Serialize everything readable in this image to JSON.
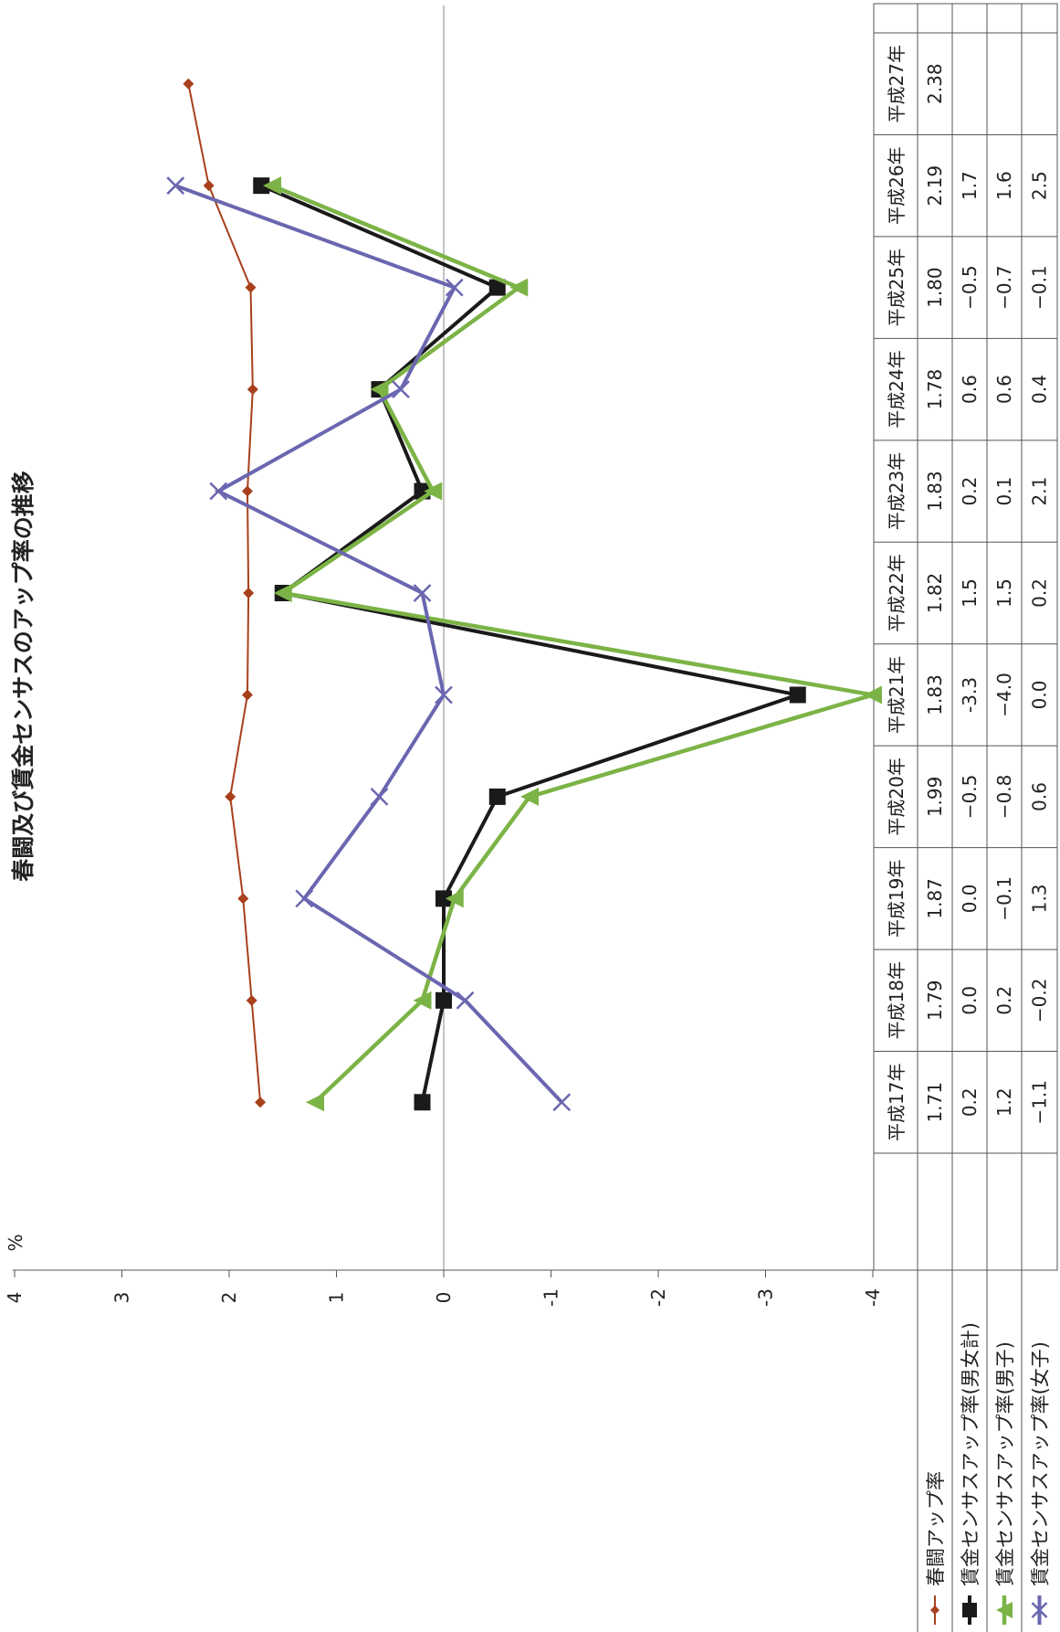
{
  "chart_data": {
    "type": "line",
    "title": "春闘及び賃金センサスのアップ率の推移",
    "ylabel": "%",
    "ylim": [
      -4,
      4
    ],
    "yticks": [
      "4",
      "3",
      "2",
      "1",
      "0",
      "-1",
      "-2",
      "-3",
      "-4"
    ],
    "categories": [
      "平成17年",
      "平成18年",
      "平成19年",
      "平成20年",
      "平成21年",
      "平成22年",
      "平成23年",
      "平成24年",
      "平成25年",
      "平成26年",
      "平成27年"
    ],
    "series": [
      {
        "name": "春闘アップ率",
        "color": "#a8401c",
        "marker": "diamond",
        "values": [
          1.71,
          1.79,
          1.87,
          1.99,
          1.83,
          1.82,
          1.83,
          1.78,
          1.8,
          2.19,
          2.38
        ],
        "labels": [
          "1.71",
          "1.79",
          "1.87",
          "1.99",
          "1.83",
          "1.82",
          "1.83",
          "1.78",
          "1.80",
          "2.19",
          "2.38"
        ]
      },
      {
        "name": "賃金センサスアップ率(男女計)",
        "color": "#1a1a1a",
        "marker": "square",
        "values": [
          0.2,
          0.0,
          0.0,
          -0.5,
          -3.3,
          1.5,
          0.2,
          0.6,
          -0.5,
          1.7,
          null
        ],
        "labels": [
          "0.2",
          "0.0",
          "0.0",
          "−0.5",
          "-3.3",
          "1.5",
          "0.2",
          "0.6",
          "−0.5",
          "1.7",
          ""
        ]
      },
      {
        "name": "賃金センサスアップ率(男子)",
        "color": "#7cb346",
        "marker": "triangle",
        "values": [
          1.2,
          0.2,
          -0.1,
          -0.8,
          -4.0,
          1.5,
          0.1,
          0.6,
          -0.7,
          1.6,
          null
        ],
        "labels": [
          "1.2",
          "0.2",
          "−0.1",
          "−0.8",
          "−4.0",
          "1.5",
          "0.1",
          "0.6",
          "−0.7",
          "1.6",
          ""
        ]
      },
      {
        "name": "賃金センサスアップ率(女子)",
        "color": "#6a66b0",
        "marker": "x",
        "values": [
          -1.1,
          -0.2,
          1.3,
          0.6,
          0.0,
          0.2,
          2.1,
          0.4,
          -0.1,
          2.5,
          null
        ],
        "labels": [
          "−1.1",
          "−0.2",
          "1.3",
          "0.6",
          "0.0",
          "0.2",
          "2.1",
          "0.4",
          "−0.1",
          "2.5",
          ""
        ]
      }
    ],
    "grid": false,
    "legend": "bottom-left table rows",
    "orientation": "rotated-90-ccw"
  }
}
